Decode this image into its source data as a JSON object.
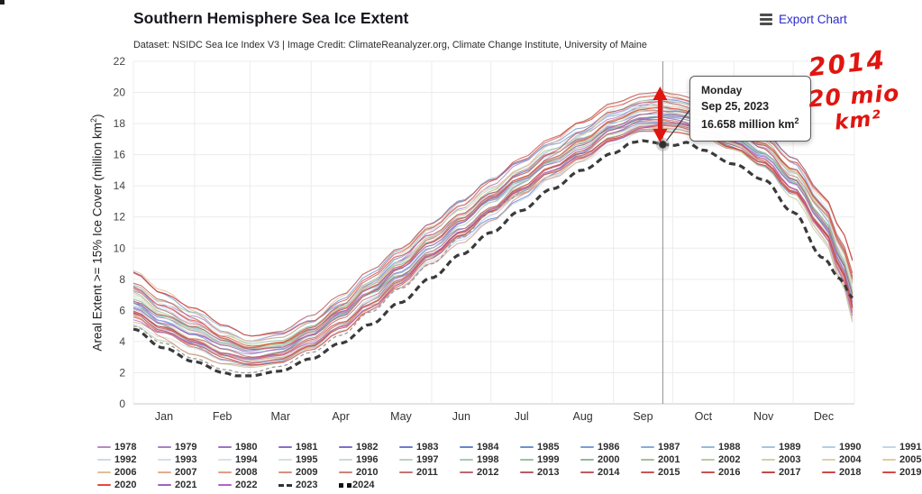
{
  "header": {
    "title": "Southern Hemisphere Sea Ice Extent",
    "subtitle": "Dataset: NSIDC Sea Ice Index V3 | Image Credit: ClimateReanalyzer.org, Climate Change Institute, University of Maine",
    "export_label": "Export Chart"
  },
  "tooltip": {
    "weekday": "Monday",
    "date": "Sep 25, 2023",
    "value_pre": "16.658 million km",
    "value_sup": "2"
  },
  "annotations": {
    "line1": "2014",
    "line2": "20 mio",
    "line3": "km²",
    "ink_color": "#e01510",
    "arrow_meaning": "gap between 2014 maximum (~20 million km2) and 2023 value"
  },
  "chart_data": {
    "type": "line",
    "title": "Southern Hemisphere Sea Ice Extent",
    "xlabel": "",
    "ylabel_parts": {
      "pre": "Areal Extent >= 15% Ice Cover (million km",
      "sup": "2",
      "post": ")"
    },
    "ylim": [
      0,
      22
    ],
    "yticks": [
      0,
      2,
      4,
      6,
      8,
      10,
      12,
      14,
      16,
      18,
      20,
      22
    ],
    "months": [
      "Jan",
      "Feb",
      "Mar",
      "Apr",
      "May",
      "Jun",
      "Jul",
      "Aug",
      "Sep",
      "Oct",
      "Nov",
      "Dec"
    ],
    "month_start_days": [
      0,
      31,
      59,
      90,
      120,
      151,
      181,
      212,
      243,
      273,
      304,
      334,
      365
    ],
    "grid": true,
    "legend_position": "bottom",
    "highlight": {
      "series": "2023",
      "weekday": "Monday",
      "date": "Sep 25, 2023",
      "day_of_year": 268,
      "value": 16.658
    },
    "series": [
      {
        "name": "2023",
        "style": "dashed-bold",
        "color": "#3a3a3a",
        "anchors": [
          [
            0,
            4.8
          ],
          [
            15,
            3.6
          ],
          [
            31,
            2.7
          ],
          [
            46,
            2.0
          ],
          [
            52,
            1.8
          ],
          [
            59,
            1.8
          ],
          [
            74,
            2.1
          ],
          [
            90,
            2.9
          ],
          [
            105,
            3.9
          ],
          [
            120,
            5.1
          ],
          [
            135,
            6.5
          ],
          [
            151,
            8.1
          ],
          [
            166,
            9.6
          ],
          [
            181,
            11.0
          ],
          [
            196,
            12.4
          ],
          [
            212,
            13.8
          ],
          [
            227,
            15.0
          ],
          [
            243,
            16.1
          ],
          [
            253,
            16.8
          ],
          [
            258,
            16.9
          ],
          [
            263,
            16.8
          ],
          [
            268,
            16.658
          ],
          [
            274,
            16.6
          ],
          [
            280,
            16.8
          ],
          [
            288,
            16.3
          ],
          [
            304,
            15.4
          ],
          [
            319,
            14.4
          ],
          [
            334,
            12.3
          ],
          [
            349,
            9.4
          ],
          [
            358,
            8.0
          ],
          [
            364,
            6.8
          ]
        ]
      },
      {
        "name": "2024",
        "style": "dashed-thin",
        "color": "#9a9a9a",
        "anchors": [
          [
            0,
            5.0
          ],
          [
            15,
            3.9
          ],
          [
            31,
            2.9
          ],
          [
            46,
            2.2
          ],
          [
            55,
            2.0
          ],
          [
            59,
            2.0
          ],
          [
            74,
            2.4
          ],
          [
            90,
            3.3
          ],
          [
            105,
            4.4
          ],
          [
            120,
            5.9
          ],
          [
            135,
            7.4
          ],
          [
            151,
            9.0
          ],
          [
            166,
            10.7
          ],
          [
            181,
            12.3
          ],
          [
            190,
            13.1
          ],
          [
            198,
            13.8
          ],
          [
            204,
            14.2
          ]
        ]
      }
    ],
    "ensemble": {
      "years": "1978-2022",
      "note": "45 overlapping yearly lines forming a band; values read as envelope min/max per day-of-year",
      "max_year": "2014",
      "max_peak_value": 20.1,
      "envelope_anchors": [
        [
          0,
          5.0,
          8.6
        ],
        [
          15,
          4.0,
          7.3
        ],
        [
          31,
          3.1,
          6.3
        ],
        [
          46,
          2.5,
          5.1
        ],
        [
          59,
          2.3,
          4.4
        ],
        [
          74,
          2.5,
          4.7
        ],
        [
          90,
          3.3,
          5.7
        ],
        [
          105,
          4.5,
          7.0
        ],
        [
          120,
          5.9,
          8.6
        ],
        [
          135,
          7.3,
          10.1
        ],
        [
          151,
          8.9,
          11.7
        ],
        [
          166,
          10.3,
          13.1
        ],
        [
          181,
          11.7,
          14.5
        ],
        [
          196,
          13.0,
          15.8
        ],
        [
          212,
          14.3,
          17.1
        ],
        [
          227,
          15.4,
          18.2
        ],
        [
          243,
          16.6,
          19.4
        ],
        [
          258,
          17.3,
          20.0
        ],
        [
          268,
          17.4,
          20.1
        ],
        [
          274,
          17.4,
          19.9
        ],
        [
          288,
          17.1,
          19.5
        ],
        [
          304,
          16.2,
          18.6
        ],
        [
          319,
          15.1,
          17.5
        ],
        [
          334,
          13.2,
          15.9
        ],
        [
          349,
          10.6,
          13.6
        ],
        [
          358,
          8.0,
          11.5
        ],
        [
          364,
          5.2,
          9.4
        ]
      ]
    }
  },
  "legend": {
    "items": [
      {
        "year": "1978",
        "color": "#b88ac1",
        "style": "line"
      },
      {
        "year": "1979",
        "color": "#a97fc4",
        "style": "line"
      },
      {
        "year": "1980",
        "color": "#9a75c6",
        "style": "line"
      },
      {
        "year": "1981",
        "color": "#8b6cc7",
        "style": "line"
      },
      {
        "year": "1982",
        "color": "#7d70c9",
        "style": "line"
      },
      {
        "year": "1983",
        "color": "#6f7aca",
        "style": "line"
      },
      {
        "year": "1984",
        "color": "#6486cb",
        "style": "line"
      },
      {
        "year": "1985",
        "color": "#6a93cf",
        "style": "line"
      },
      {
        "year": "1986",
        "color": "#79a0d3",
        "style": "line"
      },
      {
        "year": "1987",
        "color": "#88add8",
        "style": "line"
      },
      {
        "year": "1988",
        "color": "#97b9dc",
        "style": "line"
      },
      {
        "year": "1989",
        "color": "#a6c4e0",
        "style": "line"
      },
      {
        "year": "1990",
        "color": "#b5cee4",
        "style": "line"
      },
      {
        "year": "1991",
        "color": "#c2d6e7",
        "style": "line"
      },
      {
        "year": "1992",
        "color": "#cbdce9",
        "style": "line"
      },
      {
        "year": "1993",
        "color": "#d2e0ea",
        "style": "line"
      },
      {
        "year": "1994",
        "color": "#d6e2e8",
        "style": "line"
      },
      {
        "year": "1995",
        "color": "#d4e0df",
        "style": "line"
      },
      {
        "year": "1996",
        "color": "#c9dbd2",
        "style": "line"
      },
      {
        "year": "1997",
        "color": "#b9d3c2",
        "style": "line"
      },
      {
        "year": "1998",
        "color": "#a7cab1",
        "style": "line"
      },
      {
        "year": "1999",
        "color": "#97c2a2",
        "style": "line"
      },
      {
        "year": "2000",
        "color": "#8cbc97",
        "style": "line"
      },
      {
        "year": "2001",
        "color": "#9fc29b",
        "style": "line"
      },
      {
        "year": "2002",
        "color": "#b7cba0",
        "style": "line"
      },
      {
        "year": "2003",
        "color": "#cfd2a4",
        "style": "line"
      },
      {
        "year": "2004",
        "color": "#dfd2a6",
        "style": "line"
      },
      {
        "year": "2005",
        "color": "#e4c9a0",
        "style": "line"
      },
      {
        "year": "2006",
        "color": "#e4bd97",
        "style": "line"
      },
      {
        "year": "2007",
        "color": "#e1ae8d",
        "style": "line"
      },
      {
        "year": "2008",
        "color": "#dc9f85",
        "style": "line"
      },
      {
        "year": "2009",
        "color": "#d5907e",
        "style": "line"
      },
      {
        "year": "2010",
        "color": "#cd8178",
        "style": "line"
      },
      {
        "year": "2011",
        "color": "#c57373",
        "style": "line"
      },
      {
        "year": "2012",
        "color": "#bd676f",
        "style": "line"
      },
      {
        "year": "2013",
        "color": "#b55c6a",
        "style": "line"
      },
      {
        "year": "2014",
        "color": "#bd5a60",
        "style": "line"
      },
      {
        "year": "2015",
        "color": "#c35756",
        "style": "line"
      },
      {
        "year": "2016",
        "color": "#c8524f",
        "style": "line"
      },
      {
        "year": "2017",
        "color": "#c04a48",
        "style": "line"
      },
      {
        "year": "2018",
        "color": "#cb4a45",
        "style": "line"
      },
      {
        "year": "2019",
        "color": "#d54a42",
        "style": "line"
      },
      {
        "year": "2020",
        "color": "#e24b39",
        "style": "line"
      },
      {
        "year": "2021",
        "color": "#a063b9",
        "style": "line"
      },
      {
        "year": "2022",
        "color": "#b361c4",
        "style": "line"
      },
      {
        "year": "2023",
        "color": "#333333",
        "style": "dashed"
      },
      {
        "year": "2024",
        "color": "#111111",
        "style": "squares"
      }
    ]
  }
}
